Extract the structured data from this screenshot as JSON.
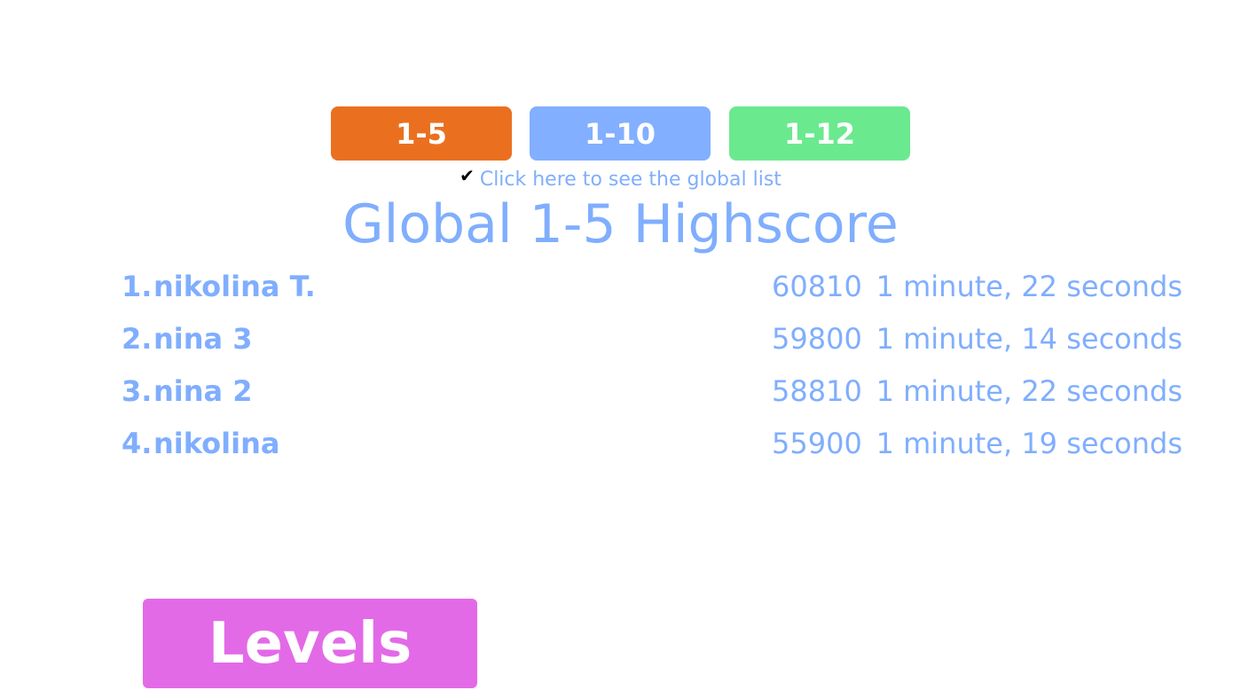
{
  "tabs": [
    {
      "label": "1-5",
      "color": "#ea7020"
    },
    {
      "label": "1-10",
      "color": "#82afff"
    },
    {
      "label": "1-12",
      "color": "#6be98f"
    }
  ],
  "global_toggle": {
    "checked": true,
    "label": "Click here to see the global list"
  },
  "title": "Global 1-5 Highscore",
  "scores": [
    {
      "rank": "1.",
      "name": "nikolina T.",
      "score": "60810",
      "time": "1 minute, 22 seconds"
    },
    {
      "rank": "2.",
      "name": "nina 3",
      "score": "59800",
      "time": "1 minute, 14 seconds"
    },
    {
      "rank": "3.",
      "name": "nina 2",
      "score": "58810",
      "time": "1 minute, 22 seconds"
    },
    {
      "rank": "4.",
      "name": "nikolina",
      "score": "55900",
      "time": "1 minute, 19 seconds"
    }
  ],
  "levels_button": "Levels"
}
